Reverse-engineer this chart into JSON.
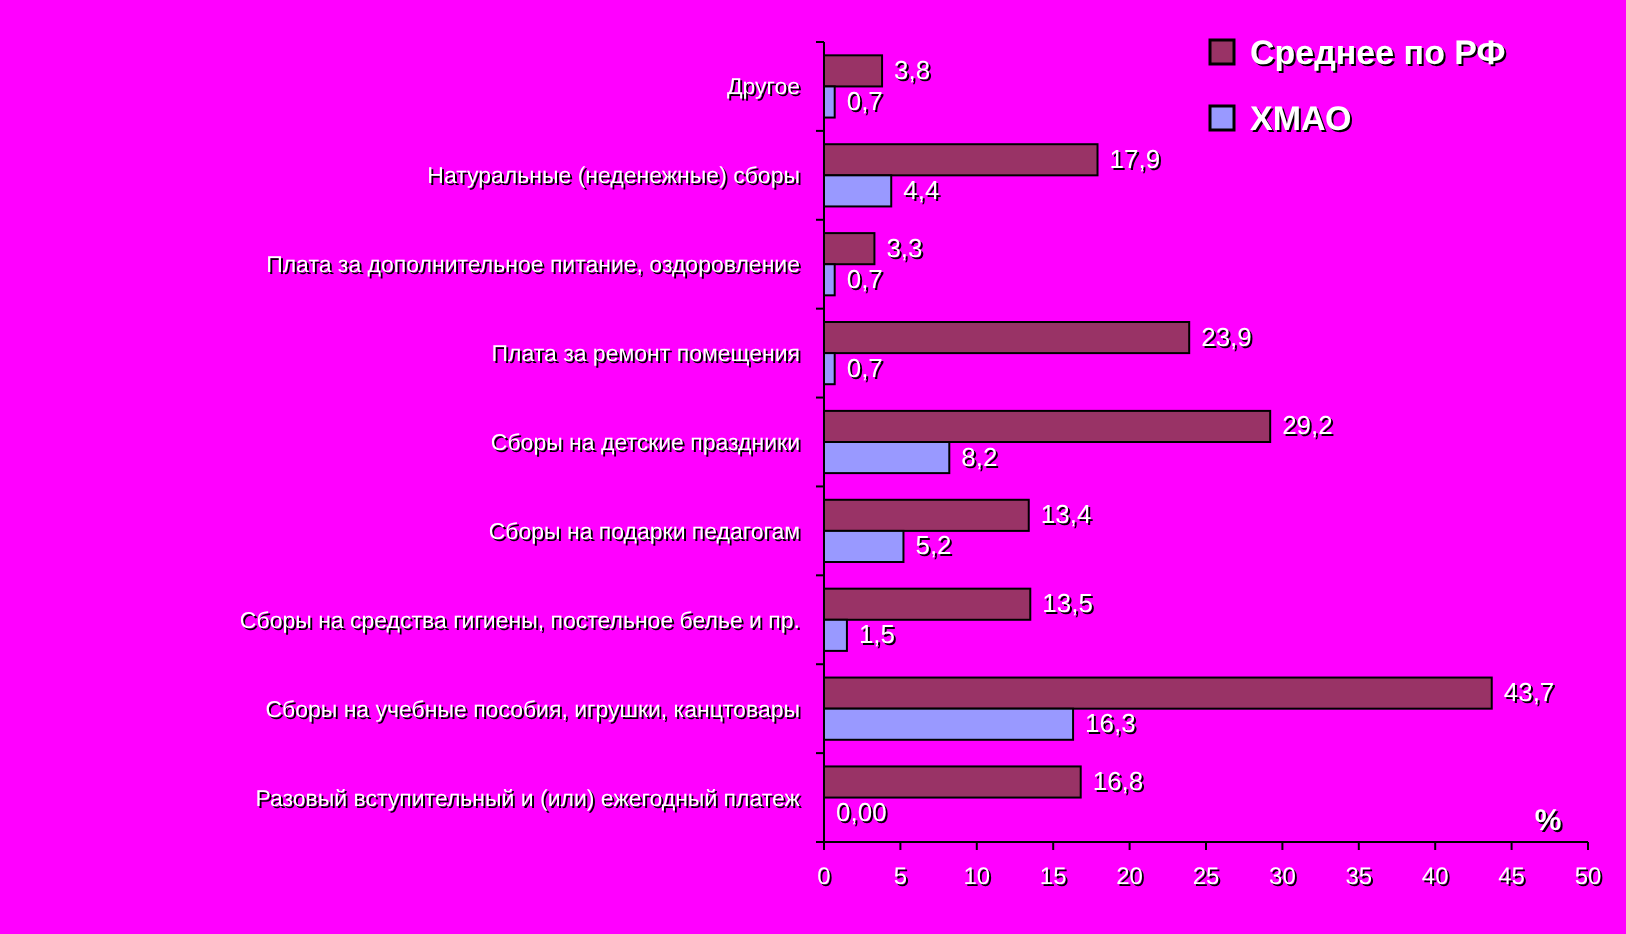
{
  "chart_data": {
    "type": "bar",
    "orientation": "horizontal",
    "xlabel": "%",
    "categories": [
      "Другое",
      "Натуральные (неденежные) сборы",
      "Плата за дополнительное питание, оздоровление",
      "Плата за ремонт помещения",
      "Сборы на детские праздники",
      "Сборы на подарки педагогам",
      "Сборы на средства гигиены, постельное белье и пр.",
      "Сборы на учебные пособия, игрушки, канцтовары",
      "Разовый вступительный и (или) ежегодный платеж"
    ],
    "series": [
      {
        "name": "Среднее по РФ",
        "color": "#993366",
        "values": [
          3.8,
          17.9,
          3.3,
          23.9,
          29.2,
          13.4,
          13.5,
          43.7,
          16.8
        ],
        "value_labels": [
          "3,8",
          "17,9",
          "3,3",
          "23,9",
          "29,2",
          "13,4",
          "13,5",
          "43,7",
          "16,8"
        ]
      },
      {
        "name": "ХМАО",
        "color": "#9999ff",
        "values": [
          0.7,
          4.4,
          0.7,
          0.7,
          8.2,
          5.2,
          1.5,
          16.3,
          0
        ],
        "value_labels": [
          "0,7",
          "4,4",
          "0,7",
          "0,7",
          "8,2",
          "5,2",
          "1,5",
          "16,3",
          "0,00"
        ]
      }
    ],
    "xlim": [
      0,
      50
    ],
    "xticks": [
      0,
      5,
      10,
      15,
      20,
      25,
      30,
      35,
      40,
      45,
      50
    ],
    "legend": "top right"
  }
}
